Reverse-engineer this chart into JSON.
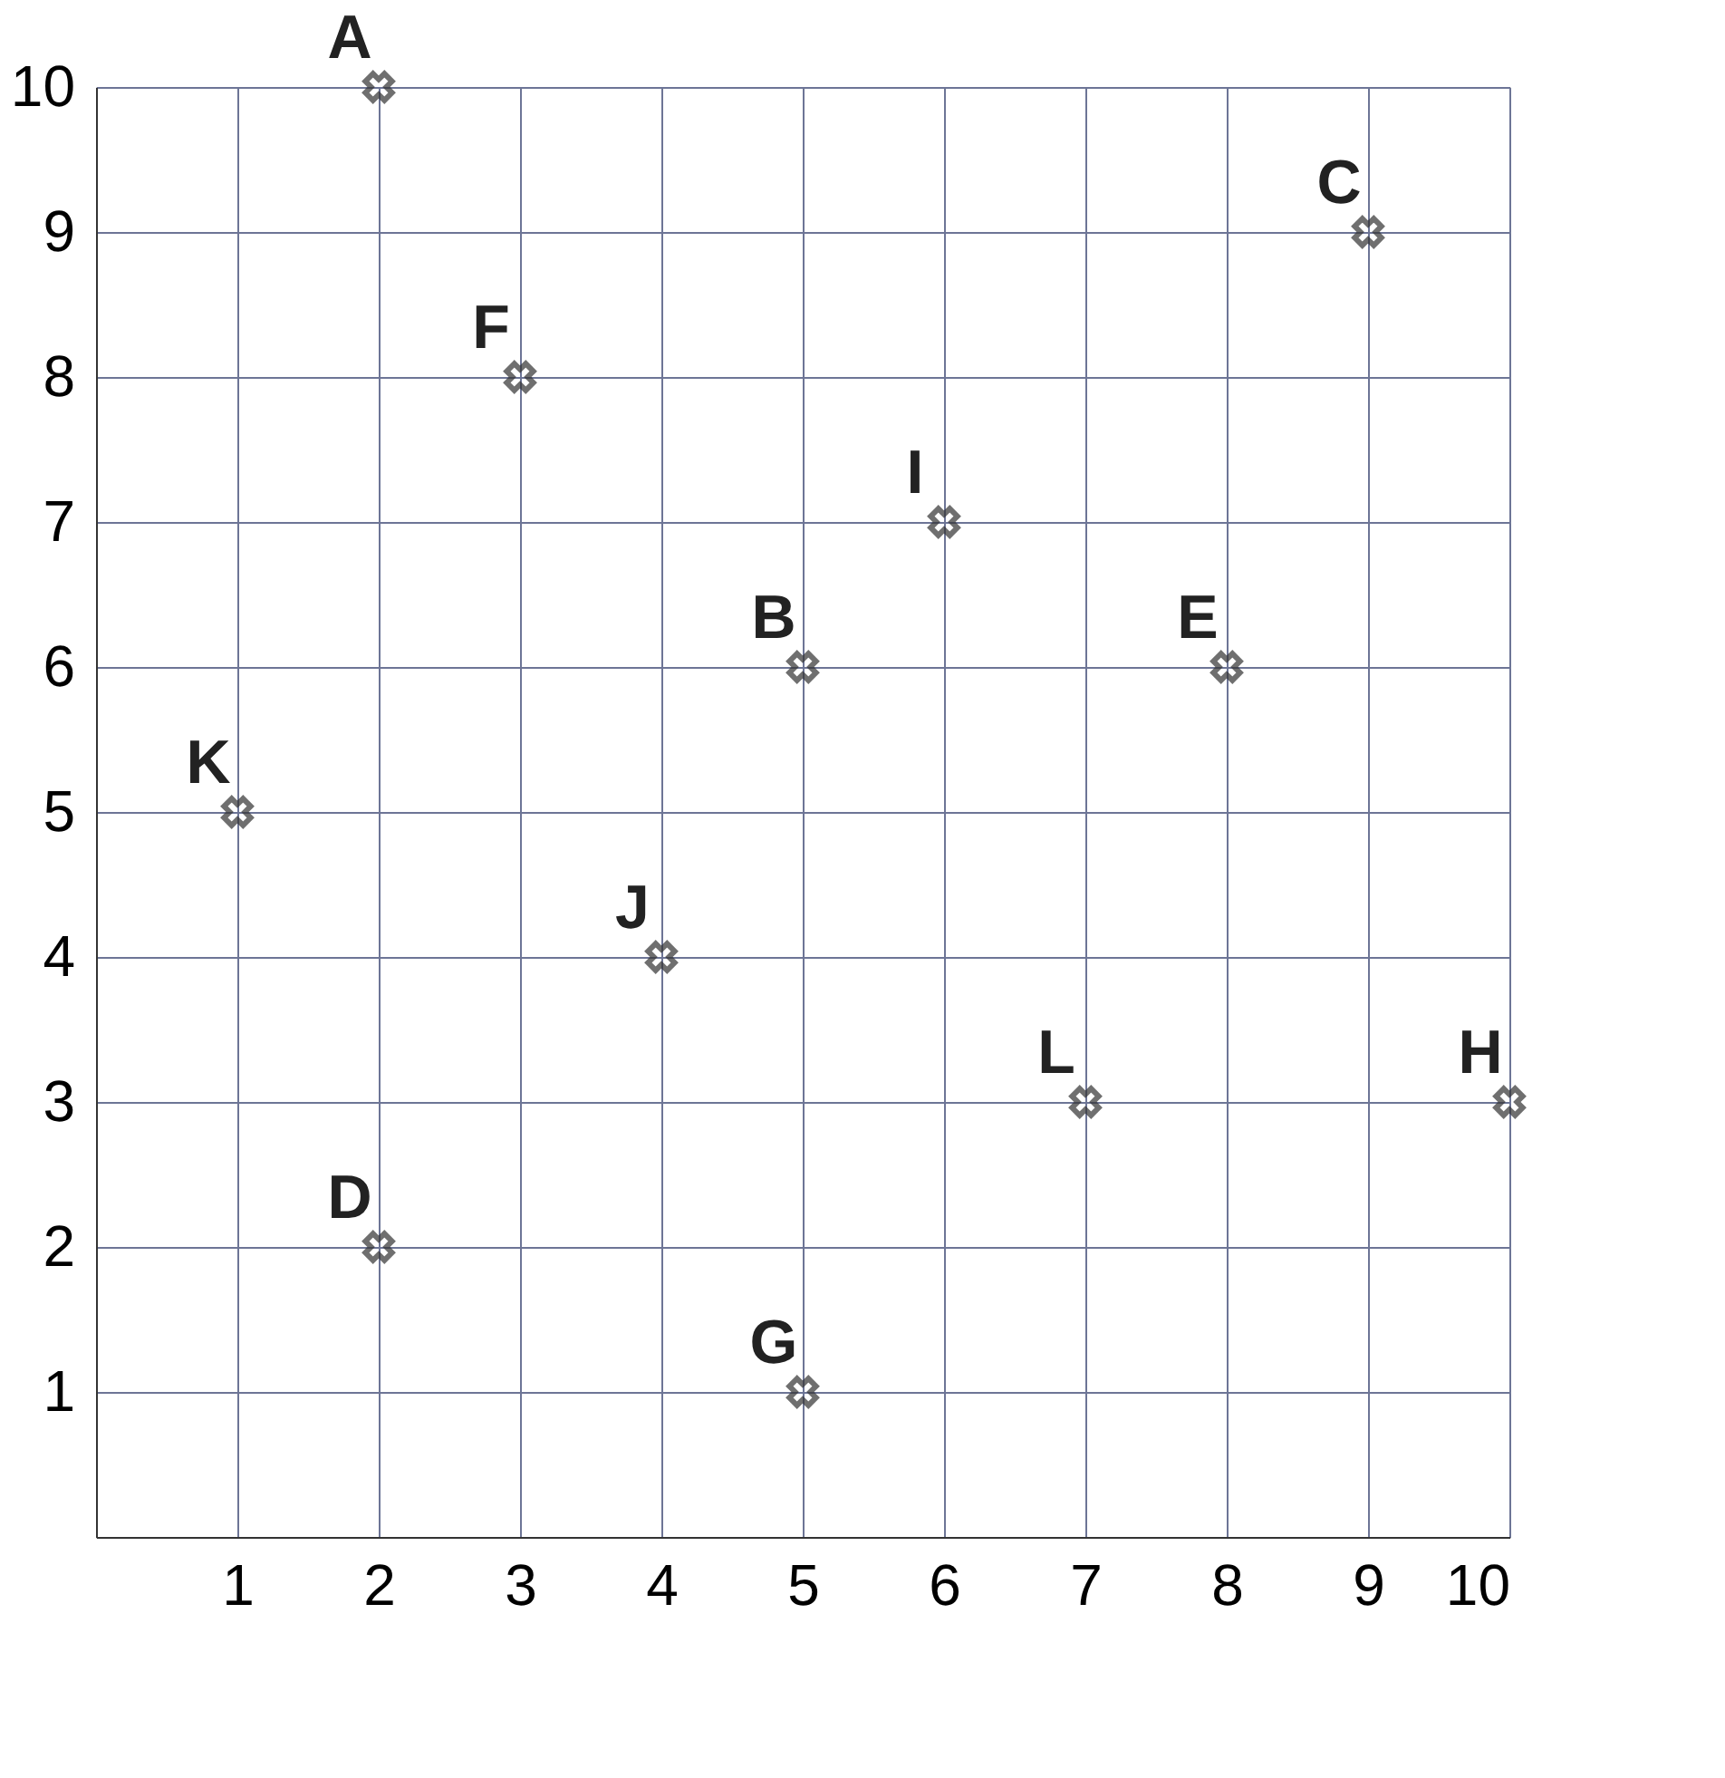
{
  "chart_data": {
    "type": "scatter",
    "x": [
      2,
      3,
      9,
      1,
      2,
      4,
      5,
      5,
      6,
      7,
      8,
      10
    ],
    "values": [
      10,
      8,
      9,
      5,
      2,
      4,
      1,
      6,
      7,
      3,
      6,
      3
    ],
    "color": "#333333",
    "marker": "cross",
    "annotations": [
      {
        "text": "A",
        "x": 2,
        "y": 10
      },
      {
        "text": "F",
        "x": 3,
        "y": 8
      },
      {
        "text": "C",
        "x": 9,
        "y": 9
      },
      {
        "text": "K",
        "x": 1,
        "y": 5
      },
      {
        "text": "D",
        "x": 2,
        "y": 2
      },
      {
        "text": "J",
        "x": 4,
        "y": 4
      },
      {
        "text": "G",
        "x": 5,
        "y": 1
      },
      {
        "text": "B",
        "x": 5,
        "y": 6
      },
      {
        "text": "I",
        "x": 6,
        "y": 7
      },
      {
        "text": "L",
        "x": 7,
        "y": 3
      },
      {
        "text": "E",
        "x": 8,
        "y": 6
      },
      {
        "text": "H",
        "x": 10,
        "y": 3
      }
    ],
    "xlim": [
      0,
      10
    ],
    "ylim": [
      0,
      10
    ],
    "xticks": [
      1,
      2,
      3,
      4,
      5,
      6,
      7,
      8,
      9,
      10
    ],
    "yticks": [
      1,
      2,
      3,
      4,
      5,
      6,
      7,
      8,
      9,
      10
    ],
    "grid": true
  }
}
